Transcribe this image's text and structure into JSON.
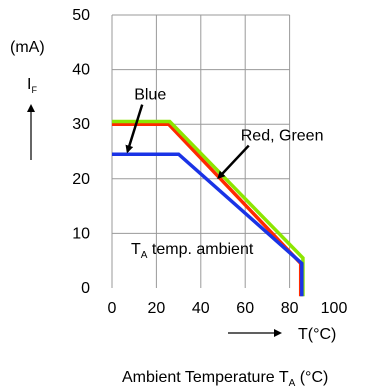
{
  "chart_data": {
    "type": "line",
    "ylabel_unit": "(mA)",
    "ylabel_symbol": "I",
    "ylabel_subscript": "F",
    "xlabel_arrow_text": "T(°C)",
    "bottom_label_main": "Ambient Temperature T",
    "bottom_label_sub": "A",
    "bottom_label_tail": " (°C)",
    "inner_label_main": "T",
    "inner_label_sub": "A",
    "inner_label_tail": " temp. ambient",
    "xlim": [
      0,
      100
    ],
    "ylim": [
      0,
      50
    ],
    "x_ticks": [
      "0",
      "20",
      "40",
      "60",
      "80",
      "100"
    ],
    "y_ticks": [
      "0",
      "10",
      "20",
      "30",
      "40",
      "50"
    ],
    "grid": true,
    "series": [
      {
        "name": "Red, Green",
        "color": "#ff2a00",
        "x": [
          0,
          25.5,
          85,
          85
        ],
        "y": [
          30,
          30,
          4.5,
          -1.5
        ]
      },
      {
        "name": "Red, Green",
        "color": "#8ce600",
        "x": [
          0,
          26,
          86,
          86
        ],
        "y": [
          30.5,
          30.5,
          5.5,
          -1.5
        ]
      },
      {
        "name": "Blue",
        "color": "#1a33e6",
        "x": [
          0,
          30,
          85.5,
          85.5
        ],
        "y": [
          24.5,
          24.5,
          4.5,
          -1.5
        ]
      }
    ],
    "annotations": [
      {
        "text": "Blue",
        "tx": 10,
        "ty": 34.5,
        "ax": 7,
        "ay": 25
      },
      {
        "text": "Red, Green",
        "tx": 58,
        "ty": 27,
        "ax": 48,
        "ay": 20.2
      }
    ]
  }
}
